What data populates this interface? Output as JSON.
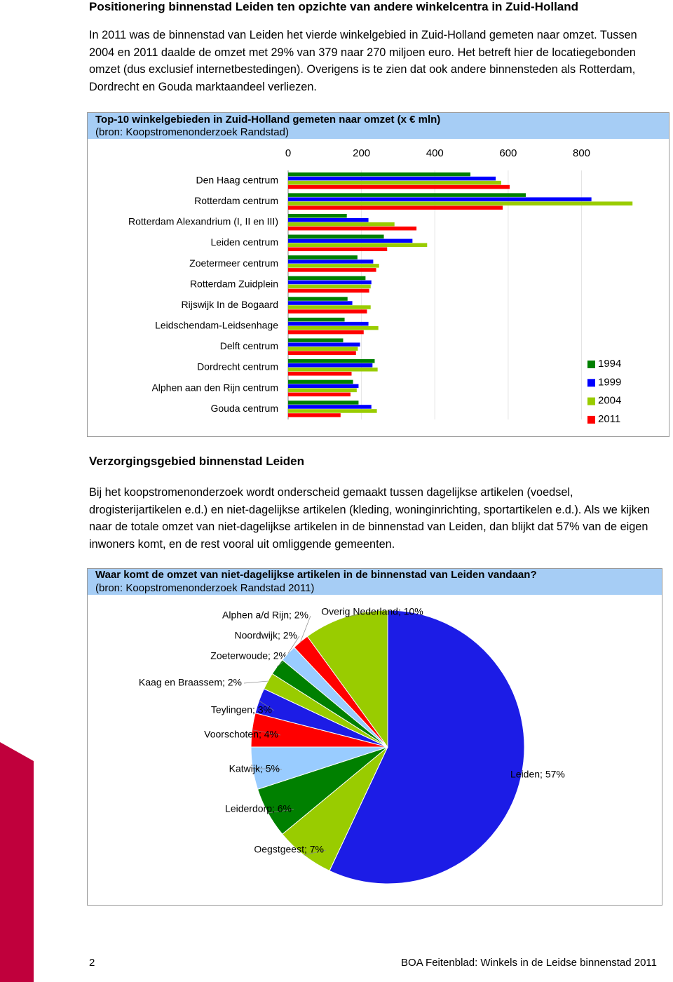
{
  "header": {
    "title": "Positionering binnenstad Leiden ten opzichte van andere winkelcentra in Zuid-Holland"
  },
  "paragraphs": [
    "In 2011 was de binnenstad van Leiden het vierde winkelgebied in Zuid-Holland gemeten naar omzet. Tussen 2004 en 2011 daalde de omzet met 29% van 379 naar 270 miljoen euro. Het betreft hier de locatiegebonden omzet (dus exclusief internetbestedingen). Overigens is te zien dat ook andere binnensteden als Rotterdam, Dordrecht en Gouda marktaandeel verliezen.",
    "Bij het koopstromenonderzoek wordt onderscheid gemaakt tussen dagelijkse artikelen (voedsel, drogisterijartikelen e.d.) en niet-dagelijkse artikelen (kleding, woninginrichting, sportartikelen e.d.). Als we kijken naar de totale omzet van niet-dagelijkse artikelen in de binnenstad van Leiden, dan blijkt dat 57% van de eigen inwoners komt, en de rest vooral uit omliggende gemeenten."
  ],
  "section_heading": "Verzorgingsgebied binnenstad Leiden",
  "chart_data": [
    {
      "type": "hbar",
      "title": "Top-10 winkelgebieden in Zuid-Holland gemeten naar omzet (x € mln)",
      "subtitle": "(bron: Koopstromenonderzoek Randstad)",
      "categories": [
        "Den Haag centrum",
        "Rotterdam centrum",
        "Rotterdam Alexandrium (I, II en III)",
        "Leiden centrum",
        "Zoetermeer centrum",
        "Rotterdam Zuidplein",
        "Rijswijk In de Bogaard",
        "Leidschendam-Leidsenhage",
        "Delft centrum",
        "Dordrecht centrum",
        "Alphen aan den Rijn centrum",
        "Gouda centrum"
      ],
      "series": [
        {
          "name": "1994",
          "color": "#008000",
          "values": [
            497,
            648,
            160,
            261,
            189,
            211,
            162,
            154,
            150,
            236,
            177,
            192
          ]
        },
        {
          "name": "1999",
          "color": "#0000ff",
          "values": [
            566,
            827,
            219,
            339,
            232,
            227,
            175,
            219,
            196,
            230,
            192,
            227
          ]
        },
        {
          "name": "2004",
          "color": "#99cc00",
          "values": [
            581,
            939,
            290,
            379,
            248,
            225,
            225,
            246,
            190,
            244,
            187,
            242
          ]
        },
        {
          "name": "2011",
          "color": "#ff0000",
          "values": [
            604,
            585,
            350,
            270,
            240,
            221,
            215,
            206,
            185,
            173,
            170,
            143
          ]
        }
      ],
      "xlim": [
        0,
        950
      ],
      "xticks": [
        0,
        200,
        400,
        600,
        800
      ],
      "grid": true,
      "legend": "bottom-right"
    },
    {
      "type": "pie",
      "title": "Waar komt de omzet van niet-dagelijkse artikelen in de binnenstad van Leiden vandaan?",
      "subtitle": "(bron: Koopstromenonderzoek Randstad 2011)",
      "values": [
        57,
        7,
        6,
        5,
        4,
        3,
        2,
        2,
        2,
        2,
        10
      ],
      "value_labels": [
        "Leiden; 57%",
        "Oegstgeest; 7%",
        "Leiderdorp; 6%",
        "Katwijk; 5%",
        "Voorschoten; 4%",
        "Teylingen; 3%",
        "Kaag en Braassem; 2%",
        "Zoeterwoude; 2%",
        "Noordwijk; 2%",
        "Alphen a/d Rijn; 2%",
        "Overig Nederland; 10%"
      ],
      "colors": [
        "#1c1ce6",
        "#99cc00",
        "#008000",
        "#99ccff",
        "#ff0000",
        "#1c1ce6",
        "#99cc00",
        "#008000",
        "#99ccff",
        "#ff0000",
        "#99cc00"
      ]
    }
  ],
  "footer": {
    "page": "2",
    "text": "BOA Feitenblad: Winkels in de Leidse binnenstad 2011"
  }
}
